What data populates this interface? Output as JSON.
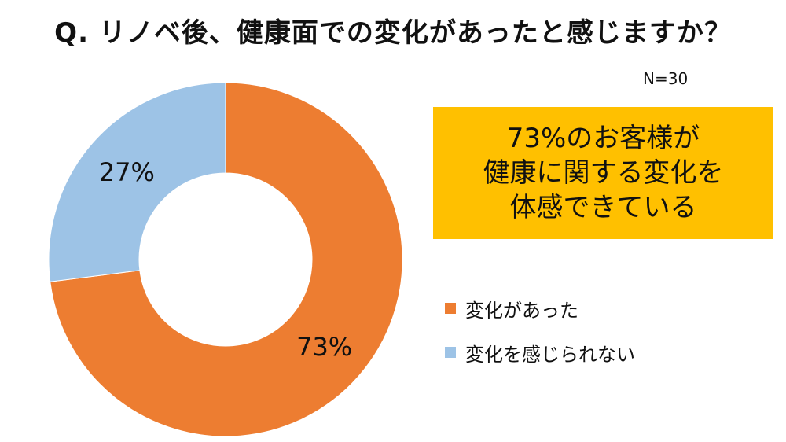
{
  "title": "Q. リノベ後、健康面での変化があったと感じますか？",
  "sample_size": "N=30",
  "callout": {
    "lines": [
      "73%のお客様が",
      "健康に関する変化を",
      "体感できている"
    ]
  },
  "colors": {
    "changed": "#ed7d31",
    "not_changed": "#9dc3e6",
    "callout_bg": "#ffc000"
  },
  "chart_data": {
    "type": "pie",
    "donut": true,
    "categories": [
      "変化があった",
      "変化を感じられない"
    ],
    "values": [
      73,
      27
    ],
    "data_labels": [
      "73%",
      "27%"
    ],
    "colors": [
      "#ed7d31",
      "#9dc3e6"
    ],
    "legend_position": "right",
    "start_angle": "12 o'clock, clockwise"
  }
}
